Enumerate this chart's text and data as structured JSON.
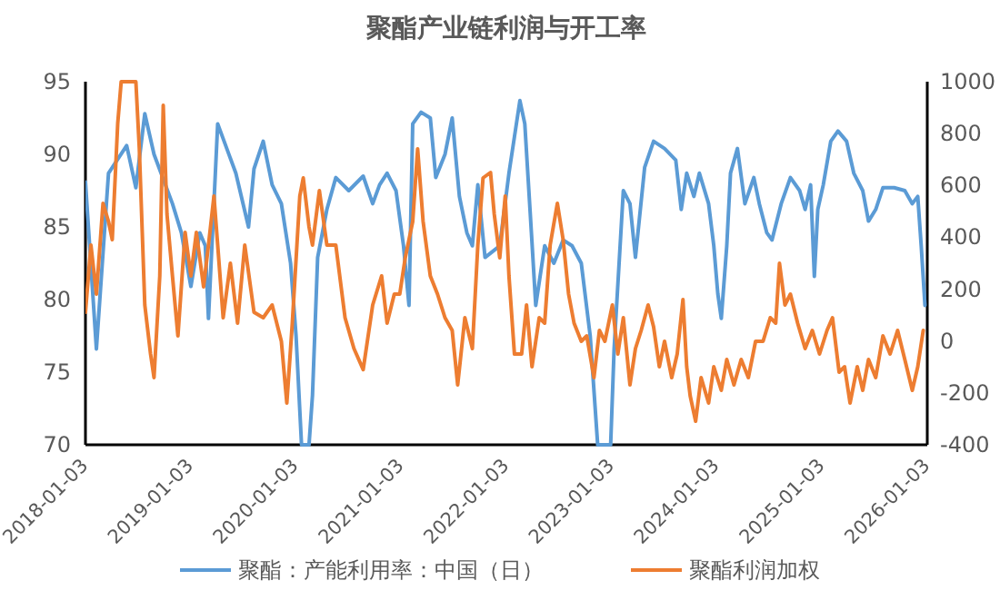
{
  "chart_data": {
    "type": "line",
    "title": "聚酯产业链利润与开工率",
    "legend": "bottom",
    "xlim": [
      "2018-01-03",
      "2026-01-03"
    ],
    "xticks": [
      "2018-01-03",
      "2019-01-03",
      "2020-01-03",
      "2021-01-03",
      "2022-01-03",
      "2023-01-03",
      "2024-01-03",
      "2025-01-03",
      "2026-01-03"
    ],
    "ylim": [
      70,
      95
    ],
    "yticks": [
      70,
      75,
      80,
      85,
      90,
      95
    ],
    "y2lim": [
      -400,
      1000
    ],
    "y2ticks": [
      -400,
      -200,
      0,
      200,
      400,
      600,
      800,
      1000
    ],
    "series": [
      {
        "name": "聚酯：产能利用率：中国（日）",
        "color": "#5b9bd5",
        "x": [
          "2018-01-03",
          "2018-02-10",
          "2018-03-24",
          "2018-05-26",
          "2018-06-27",
          "2018-07-28",
          "2018-08-29",
          "2018-11-01",
          "2018-12-02",
          "2019-01-04",
          "2019-02-04",
          "2019-02-23",
          "2019-03-06",
          "2019-04-07",
          "2019-06-09",
          "2019-07-23",
          "2019-08-11",
          "2019-09-12",
          "2019-10-13",
          "2019-11-14",
          "2019-12-16",
          "2020-01-04",
          "2020-01-23",
          "2020-02-18",
          "2020-03-01",
          "2020-03-19",
          "2020-04-20",
          "2020-05-21",
          "2020-07-05",
          "2020-08-24",
          "2020-09-26",
          "2020-10-20",
          "2020-11-15",
          "2020-12-16",
          "2021-01-11",
          "2021-01-30",
          "2021-02-12",
          "2021-03-13",
          "2021-04-14",
          "2021-05-03",
          "2021-06-04",
          "2021-06-29",
          "2021-07-24",
          "2021-08-19",
          "2021-09-07",
          "2021-09-26",
          "2021-10-21",
          "2021-11-22",
          "2021-12-11",
          "2022-01-12",
          "2022-01-31",
          "2022-02-19",
          "2022-03-08",
          "2022-03-27",
          "2022-04-15",
          "2022-05-16",
          "2022-06-17",
          "2022-07-19",
          "2022-08-19",
          "2022-09-20",
          "2022-10-21",
          "2022-11-16",
          "2022-12-31",
          "2023-01-12",
          "2023-02-13",
          "2023-03-08",
          "2023-03-27",
          "2023-04-28",
          "2023-05-29",
          "2023-07-06",
          "2023-08-14",
          "2023-09-02",
          "2023-09-21",
          "2023-10-16",
          "2023-11-04",
          "2023-12-06",
          "2023-12-24",
          "2024-01-07",
          "2024-01-19",
          "2024-02-07",
          "2024-02-20",
          "2024-03-15",
          "2024-04-10",
          "2024-05-11",
          "2024-05-30",
          "2024-06-25",
          "2024-07-13",
          "2024-08-14",
          "2024-09-15",
          "2024-10-17",
          "2024-11-05",
          "2024-11-24",
          "2024-12-07",
          "2024-12-19",
          "2025-01-07",
          "2025-02-02",
          "2025-02-27",
          "2025-03-29",
          "2025-04-23",
          "2025-05-24",
          "2025-06-13",
          "2025-07-08",
          "2025-08-02",
          "2025-09-10",
          "2025-10-17",
          "2025-11-12",
          "2025-12-01",
          "2025-12-13",
          "2025-12-26"
        ],
        "values": [
          88.1,
          76.6,
          88.7,
          90.6,
          87.7,
          92.8,
          90.0,
          86.6,
          84.6,
          80.9,
          84.6,
          83.7,
          78.7,
          92.1,
          88.7,
          85.0,
          89.0,
          90.9,
          87.9,
          86.6,
          82.5,
          77.5,
          70,
          70,
          73.4,
          82.9,
          86.2,
          88.4,
          87.5,
          88.5,
          86.6,
          87.9,
          88.7,
          87.5,
          83.7,
          79.6,
          92.1,
          92.9,
          92.5,
          88.4,
          90.0,
          92.5,
          87.1,
          84.6,
          83.7,
          87.9,
          82.9,
          83.4,
          83.7,
          88.7,
          91.2,
          93.7,
          92.1,
          85.9,
          79.6,
          83.7,
          82.5,
          84.1,
          83.7,
          82.5,
          77.5,
          70,
          70,
          76.6,
          87.5,
          86.6,
          82.9,
          89.1,
          90.9,
          90.4,
          89.6,
          86.2,
          88.7,
          87.1,
          88.7,
          86.6,
          83.7,
          80.4,
          78.7,
          83.7,
          88.7,
          90.4,
          86.6,
          88.4,
          86.6,
          84.6,
          84.1,
          86.6,
          88.4,
          87.5,
          86.2,
          87.9,
          81.6,
          86.2,
          87.9,
          90.9,
          91.6,
          90.9,
          88.7,
          87.5,
          85.4,
          86.2,
          87.7,
          87.7,
          87.5,
          86.6,
          87.1,
          83.7,
          79.6
        ]
      },
      {
        "name": "聚酯利润加权",
        "color": "#ed7d31",
        "axis": "y2",
        "x": [
          "2018-01-03",
          "2018-01-22",
          "2018-02-10",
          "2018-03-05",
          "2018-03-24",
          "2018-04-06",
          "2018-04-25",
          "2018-05-07",
          "2018-06-27",
          "2018-07-09",
          "2018-07-28",
          "2018-08-17",
          "2018-08-29",
          "2018-09-18",
          "2018-09-30",
          "2018-10-13",
          "2018-11-01",
          "2018-11-20",
          "2018-12-15",
          "2019-01-04",
          "2019-01-23",
          "2019-02-17",
          "2019-03-06",
          "2019-03-25",
          "2019-04-07",
          "2019-04-26",
          "2019-05-21",
          "2019-06-15",
          "2019-07-10",
          "2019-08-11",
          "2019-09-12",
          "2019-10-13",
          "2019-11-14",
          "2019-12-03",
          "2019-12-22",
          "2020-01-17",
          "2020-01-29",
          "2020-02-18",
          "2020-03-01",
          "2020-03-25",
          "2020-04-20",
          "2020-05-21",
          "2020-06-22",
          "2020-07-23",
          "2020-08-24",
          "2020-09-26",
          "2020-10-27",
          "2020-11-15",
          "2020-12-10",
          "2020-12-29",
          "2021-01-17",
          "2021-02-12",
          "2021-03-01",
          "2021-03-20",
          "2021-04-14",
          "2021-05-09",
          "2021-06-04",
          "2021-06-29",
          "2021-07-18",
          "2021-08-12",
          "2021-09-07",
          "2021-09-26",
          "2021-10-14",
          "2021-11-09",
          "2021-11-22",
          "2021-12-11",
          "2021-12-30",
          "2022-01-12",
          "2022-01-31",
          "2022-02-25",
          "2022-03-14",
          "2022-04-02",
          "2022-04-27",
          "2022-05-16",
          "2022-06-04",
          "2022-06-29",
          "2022-07-19",
          "2022-08-07",
          "2022-08-26",
          "2022-09-20",
          "2022-10-09",
          "2022-11-03",
          "2022-11-22",
          "2022-12-11",
          "2023-01-06",
          "2023-01-25",
          "2023-02-13",
          "2023-03-08",
          "2023-03-27",
          "2023-04-16",
          "2023-05-10",
          "2023-05-29",
          "2023-06-18",
          "2023-07-06",
          "2023-07-31",
          "2023-08-19",
          "2023-09-08",
          "2023-09-21",
          "2023-10-03",
          "2023-10-22",
          "2023-11-10",
          "2023-12-06",
          "2023-12-24",
          "2024-01-19",
          "2024-02-07",
          "2024-03-03",
          "2024-03-28",
          "2024-04-22",
          "2024-05-17",
          "2024-06-12",
          "2024-07-07",
          "2024-07-26",
          "2024-08-08",
          "2024-08-27",
          "2024-09-15",
          "2024-10-10",
          "2024-11-05",
          "2024-11-30",
          "2024-12-25",
          "2025-01-20",
          "2025-02-08",
          "2025-03-03",
          "2025-03-22",
          "2025-04-10",
          "2025-05-05",
          "2025-05-24",
          "2025-06-13",
          "2025-07-08",
          "2025-08-02",
          "2025-08-27",
          "2025-09-22",
          "2025-10-17",
          "2025-11-12",
          "2025-12-01",
          "2025-12-20"
        ],
        "values": [
          111,
          370,
          181,
          531,
          461,
          391,
          839,
          1000,
          1000,
          741,
          139,
          -50,
          -141,
          251,
          909,
          489,
          251,
          20,
          419,
          251,
          419,
          209,
          370,
          559,
          370,
          90,
          300,
          69,
          370,
          111,
          90,
          139,
          -1,
          -239,
          69,
          559,
          629,
          440,
          370,
          580,
          370,
          370,
          90,
          -29,
          -110,
          139,
          251,
          69,
          181,
          181,
          321,
          461,
          741,
          461,
          251,
          181,
          90,
          41,
          -169,
          90,
          -29,
          370,
          629,
          650,
          489,
          321,
          559,
          251,
          -50,
          -50,
          139,
          -99,
          90,
          69,
          370,
          531,
          391,
          181,
          69,
          -1,
          20,
          -141,
          41,
          -1,
          139,
          -50,
          90,
          -169,
          -29,
          41,
          139,
          55,
          -99,
          -1,
          -141,
          -50,
          160,
          -99,
          -211,
          -309,
          -141,
          -239,
          -99,
          -190,
          -71,
          -169,
          -71,
          -141,
          -1,
          -1,
          90,
          69,
          300,
          139,
          181,
          69,
          -29,
          41,
          -50,
          41,
          90,
          -120,
          -99,
          -239,
          -99,
          -190,
          -71,
          -141,
          20,
          -50,
          41,
          -71,
          -190,
          -99,
          41
        ]
      }
    ]
  }
}
